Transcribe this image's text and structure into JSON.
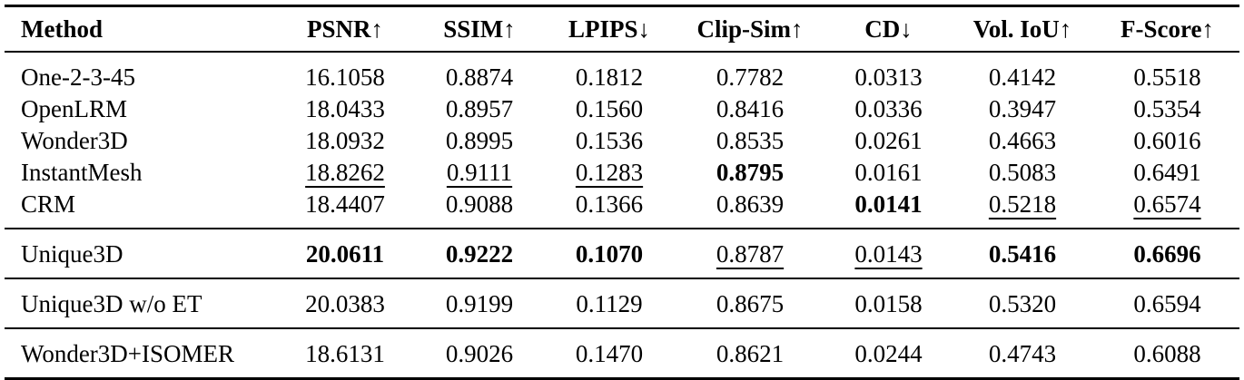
{
  "table": {
    "headers": [
      "Method",
      "PSNR↑",
      "SSIM↑",
      "LPIPS↓",
      "Clip-Sim↑",
      "CD↓",
      "Vol. IoU↑",
      "F-Score↑"
    ],
    "rows": [
      {
        "method": "One-2-3-45",
        "values": [
          "16.1058",
          "0.8874",
          "0.1812",
          "0.7782",
          "0.0313",
          "0.4142",
          "0.5518"
        ],
        "bold": [],
        "underline": []
      },
      {
        "method": "OpenLRM",
        "values": [
          "18.0433",
          "0.8957",
          "0.1560",
          "0.8416",
          "0.0336",
          "0.3947",
          "0.5354"
        ],
        "bold": [],
        "underline": []
      },
      {
        "method": "Wonder3D",
        "values": [
          "18.0932",
          "0.8995",
          "0.1536",
          "0.8535",
          "0.0261",
          "0.4663",
          "0.6016"
        ],
        "bold": [],
        "underline": []
      },
      {
        "method": "InstantMesh",
        "values": [
          "18.8262",
          "0.9111",
          "0.1283",
          "0.8795",
          "0.0161",
          "0.5083",
          "0.6491"
        ],
        "bold": [
          3
        ],
        "underline": [
          0,
          1,
          2
        ]
      },
      {
        "method": "CRM",
        "values": [
          "18.4407",
          "0.9088",
          "0.1366",
          "0.8639",
          "0.0141",
          "0.5218",
          "0.6574"
        ],
        "bold": [
          4
        ],
        "underline": [
          5,
          6
        ]
      },
      {
        "method": "Unique3D",
        "values": [
          "20.0611",
          "0.9222",
          "0.1070",
          "0.8787",
          "0.0143",
          "0.5416",
          "0.6696"
        ],
        "bold": [
          0,
          1,
          2,
          5,
          6
        ],
        "underline": [
          3,
          4
        ]
      },
      {
        "method": "Unique3D w/o ET",
        "values": [
          "20.0383",
          "0.9199",
          "0.1129",
          "0.8675",
          "0.0158",
          "0.5320",
          "0.6594"
        ],
        "bold": [],
        "underline": []
      },
      {
        "method": "Wonder3D+ISOMER",
        "values": [
          "18.6131",
          "0.9026",
          "0.1470",
          "0.8621",
          "0.0244",
          "0.4743",
          "0.6088"
        ],
        "bold": [],
        "underline": []
      }
    ]
  }
}
